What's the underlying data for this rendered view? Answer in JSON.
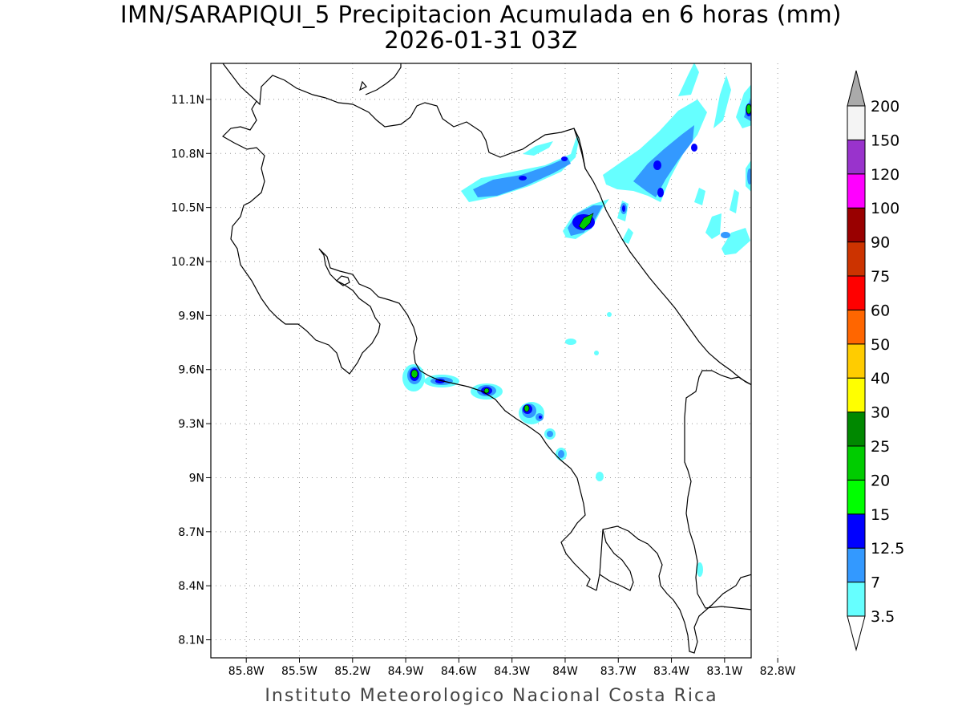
{
  "title": {
    "line1": "IMN/SARAPIQUI_5 Precipitacion Acumulada en 6 horas (mm)",
    "line2": "2026-01-31 03Z"
  },
  "footer": "Instituto Meteorologico Nacional Costa Rica",
  "map": {
    "lon_range": [
      -86.0,
      -82.95
    ],
    "lat_range": [
      8.0,
      11.3
    ],
    "lon_ticks": [
      {
        "v": -85.8,
        "label": "85.8W"
      },
      {
        "v": -85.5,
        "label": "85.5W"
      },
      {
        "v": -85.2,
        "label": "85.2W"
      },
      {
        "v": -84.9,
        "label": "84.9W"
      },
      {
        "v": -84.6,
        "label": "84.6W"
      },
      {
        "v": -84.3,
        "label": "84.3W"
      },
      {
        "v": -84.0,
        "label": "84W"
      },
      {
        "v": -83.7,
        "label": "83.7W"
      },
      {
        "v": -83.4,
        "label": "83.4W"
      },
      {
        "v": -83.1,
        "label": "83.1W"
      },
      {
        "v": -82.8,
        "label": "82.8W"
      }
    ],
    "lat_ticks": [
      {
        "v": 11.1,
        "label": "11.1N"
      },
      {
        "v": 10.8,
        "label": "10.8N"
      },
      {
        "v": 10.5,
        "label": "10.5N"
      },
      {
        "v": 10.2,
        "label": "10.2N"
      },
      {
        "v": 9.9,
        "label": "9.9N"
      },
      {
        "v": 9.6,
        "label": "9.6N"
      },
      {
        "v": 9.3,
        "label": "9.3N"
      },
      {
        "v": 9.0,
        "label": "9N"
      },
      {
        "v": 8.7,
        "label": "8.7N"
      },
      {
        "v": 8.4,
        "label": "8.4N"
      },
      {
        "v": 8.1,
        "label": "8.1N"
      }
    ]
  },
  "colorbar": {
    "labels": [
      "3.5",
      "7",
      "12.5",
      "15",
      "20",
      "25",
      "30",
      "40",
      "50",
      "60",
      "75",
      "90",
      "100",
      "120",
      "150",
      "200"
    ],
    "colors": [
      "#66ffff",
      "#3399ff",
      "#0000ff",
      "#00ff00",
      "#00cc00",
      "#008800",
      "#ffff00",
      "#ffcc00",
      "#ff6600",
      "#ff0000",
      "#cc3300",
      "#990000",
      "#ff00ff",
      "#9933cc",
      "#f4f4f4"
    ],
    "below_color": "#ffffff",
    "above_color": "#aaaaaa"
  },
  "precip_colors": {
    "light": "#66ffff",
    "moderate": "#3399ff",
    "heavy": "#0000ff",
    "very_heavy": "#00cc00"
  }
}
